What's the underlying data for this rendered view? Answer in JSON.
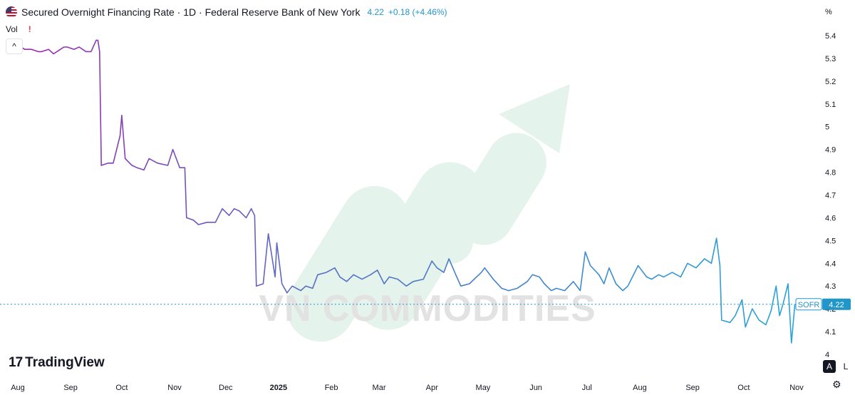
{
  "header": {
    "title": "Secured Overnight Financing Rate · 1D · Federal Reserve Bank of New York",
    "last_value": "4.22",
    "change": "+0.18 (+4.46%)",
    "vol_label": "Vol",
    "warn_glyph": "!",
    "collapse_glyph": "^"
  },
  "price_scale": {
    "unit": "%",
    "auto_label": "A",
    "log_label": "L",
    "settings_icon": "gear-icon"
  },
  "watermark": {
    "text": "VN COMMODITIES"
  },
  "branding": {
    "logo_mark": "17",
    "logo_text": "TradingView"
  },
  "colors": {
    "line_start": "#9c27b0",
    "line_mid": "#5c6bc0",
    "line_end": "#29a3d9",
    "price_label_bg": "#2196c8",
    "axis_text": "#131722",
    "watermark": "#e8f5ee",
    "watermark_text": "#e6e6e6"
  },
  "chart_data": {
    "type": "line",
    "series": [
      {
        "name": "SOFR",
        "last_label": "4.22",
        "points": [
          [
            "2024-08-01",
            5.36
          ],
          [
            "2024-08-05",
            5.34
          ],
          [
            "2024-08-09",
            5.34
          ],
          [
            "2024-08-13",
            5.33
          ],
          [
            "2024-08-15",
            5.33
          ],
          [
            "2024-08-19",
            5.34
          ],
          [
            "2024-08-22",
            5.32
          ],
          [
            "2024-08-26",
            5.34
          ],
          [
            "2024-08-28",
            5.35
          ],
          [
            "2024-08-30",
            5.35
          ],
          [
            "2024-09-03",
            5.34
          ],
          [
            "2024-09-06",
            5.35
          ],
          [
            "2024-09-10",
            5.33
          ],
          [
            "2024-09-13",
            5.33
          ],
          [
            "2024-09-16",
            5.38
          ],
          [
            "2024-09-17",
            5.38
          ],
          [
            "2024-09-18",
            5.33
          ],
          [
            "2024-09-19",
            4.83
          ],
          [
            "2024-09-23",
            4.84
          ],
          [
            "2024-09-26",
            4.84
          ],
          [
            "2024-09-30",
            4.96
          ],
          [
            "2024-10-01",
            5.05
          ],
          [
            "2024-10-03",
            4.86
          ],
          [
            "2024-10-07",
            4.83
          ],
          [
            "2024-10-10",
            4.82
          ],
          [
            "2024-10-14",
            4.81
          ],
          [
            "2024-10-17",
            4.86
          ],
          [
            "2024-10-22",
            4.84
          ],
          [
            "2024-10-28",
            4.83
          ],
          [
            "2024-10-31",
            4.9
          ],
          [
            "2024-11-04",
            4.82
          ],
          [
            "2024-11-07",
            4.82
          ],
          [
            "2024-11-08",
            4.6
          ],
          [
            "2024-11-12",
            4.59
          ],
          [
            "2024-11-15",
            4.57
          ],
          [
            "2024-11-20",
            4.58
          ],
          [
            "2024-11-25",
            4.58
          ],
          [
            "2024-11-29",
            4.64
          ],
          [
            "2024-12-03",
            4.61
          ],
          [
            "2024-12-06",
            4.64
          ],
          [
            "2024-12-09",
            4.63
          ],
          [
            "2024-12-13",
            4.6
          ],
          [
            "2024-12-16",
            4.64
          ],
          [
            "2024-12-18",
            4.61
          ],
          [
            "2024-12-19",
            4.3
          ],
          [
            "2024-12-23",
            4.31
          ],
          [
            "2024-12-26",
            4.53
          ],
          [
            "2024-12-30",
            4.34
          ],
          [
            "2024-12-31",
            4.49
          ],
          [
            "2025-01-03",
            4.31
          ],
          [
            "2025-01-06",
            4.27
          ],
          [
            "2025-01-09",
            4.3
          ],
          [
            "2025-01-14",
            4.28
          ],
          [
            "2025-01-17",
            4.3
          ],
          [
            "2025-01-21",
            4.29
          ],
          [
            "2025-01-24",
            4.35
          ],
          [
            "2025-01-29",
            4.36
          ],
          [
            "2025-02-03",
            4.38
          ],
          [
            "2025-02-06",
            4.34
          ],
          [
            "2025-02-10",
            4.32
          ],
          [
            "2025-02-14",
            4.35
          ],
          [
            "2025-02-19",
            4.33
          ],
          [
            "2025-02-24",
            4.35
          ],
          [
            "2025-02-28",
            4.37
          ],
          [
            "2025-03-04",
            4.31
          ],
          [
            "2025-03-07",
            4.34
          ],
          [
            "2025-03-12",
            4.33
          ],
          [
            "2025-03-17",
            4.3
          ],
          [
            "2025-03-21",
            4.32
          ],
          [
            "2025-03-27",
            4.33
          ],
          [
            "2025-04-01",
            4.41
          ],
          [
            "2025-04-04",
            4.38
          ],
          [
            "2025-04-08",
            4.36
          ],
          [
            "2025-04-11",
            4.42
          ],
          [
            "2025-04-15",
            4.35
          ],
          [
            "2025-04-18",
            4.3
          ],
          [
            "2025-04-23",
            4.31
          ],
          [
            "2025-04-30",
            4.36
          ],
          [
            "2025-05-02",
            4.38
          ],
          [
            "2025-05-07",
            4.33
          ],
          [
            "2025-05-12",
            4.29
          ],
          [
            "2025-05-16",
            4.28
          ],
          [
            "2025-05-21",
            4.29
          ],
          [
            "2025-05-27",
            4.32
          ],
          [
            "2025-05-30",
            4.35
          ],
          [
            "2025-06-03",
            4.34
          ],
          [
            "2025-06-06",
            4.31
          ],
          [
            "2025-06-10",
            4.28
          ],
          [
            "2025-06-13",
            4.29
          ],
          [
            "2025-06-18",
            4.28
          ],
          [
            "2025-06-23",
            4.32
          ],
          [
            "2025-06-27",
            4.28
          ],
          [
            "2025-06-30",
            4.45
          ],
          [
            "2025-07-03",
            4.39
          ],
          [
            "2025-07-08",
            4.35
          ],
          [
            "2025-07-11",
            4.31
          ],
          [
            "2025-07-14",
            4.38
          ],
          [
            "2025-07-18",
            4.31
          ],
          [
            "2025-07-22",
            4.28
          ],
          [
            "2025-07-25",
            4.3
          ],
          [
            "2025-07-31",
            4.39
          ],
          [
            "2025-08-01",
            4.38
          ],
          [
            "2025-08-05",
            4.34
          ],
          [
            "2025-08-08",
            4.33
          ],
          [
            "2025-08-12",
            4.35
          ],
          [
            "2025-08-15",
            4.34
          ],
          [
            "2025-08-20",
            4.36
          ],
          [
            "2025-08-25",
            4.34
          ],
          [
            "2025-08-29",
            4.4
          ],
          [
            "2025-09-03",
            4.38
          ],
          [
            "2025-09-08",
            4.42
          ],
          [
            "2025-09-12",
            4.4
          ],
          [
            "2025-09-15",
            4.51
          ],
          [
            "2025-09-17",
            4.39
          ],
          [
            "2025-09-18",
            4.15
          ],
          [
            "2025-09-23",
            4.14
          ],
          [
            "2025-09-26",
            4.17
          ],
          [
            "2025-09-30",
            4.24
          ],
          [
            "2025-10-02",
            4.12
          ],
          [
            "2025-10-06",
            4.2
          ],
          [
            "2025-10-10",
            4.15
          ],
          [
            "2025-10-14",
            4.13
          ],
          [
            "2025-10-17",
            4.19
          ],
          [
            "2025-10-20",
            4.3
          ],
          [
            "2025-10-22",
            4.17
          ],
          [
            "2025-10-24",
            4.22
          ],
          [
            "2025-10-27",
            4.31
          ],
          [
            "2025-10-29",
            4.05
          ],
          [
            "2025-10-31",
            4.22
          ]
        ]
      }
    ],
    "ylim": [
      4.0,
      5.4
    ],
    "yticks": [
      "5.4",
      "5.3",
      "5.2",
      "5.1",
      "5",
      "4.9",
      "4.8",
      "4.7",
      "4.6",
      "4.5",
      "4.4",
      "4.3",
      "4.2",
      "4.1",
      "4"
    ],
    "xticks": [
      {
        "label": "Aug",
        "date": "2024-08-01"
      },
      {
        "label": "Sep",
        "date": "2024-09-01"
      },
      {
        "label": "Oct",
        "date": "2024-10-01"
      },
      {
        "label": "Nov",
        "date": "2024-11-01"
      },
      {
        "label": "Dec",
        "date": "2024-12-01"
      },
      {
        "label": "2025",
        "date": "2025-01-01"
      },
      {
        "label": "Feb",
        "date": "2025-02-01"
      },
      {
        "label": "Mar",
        "date": "2025-03-01"
      },
      {
        "label": "Apr",
        "date": "2025-04-01"
      },
      {
        "label": "May",
        "date": "2025-05-01"
      },
      {
        "label": "Jun",
        "date": "2025-06-01"
      },
      {
        "label": "Jul",
        "date": "2025-07-01"
      },
      {
        "label": "Aug",
        "date": "2025-08-01"
      },
      {
        "label": "Sep",
        "date": "2025-09-01"
      },
      {
        "label": "Oct",
        "date": "2025-10-01"
      },
      {
        "label": "Nov",
        "date": "2025-11-01"
      }
    ],
    "grid": false,
    "last_value_line": "dashed"
  }
}
